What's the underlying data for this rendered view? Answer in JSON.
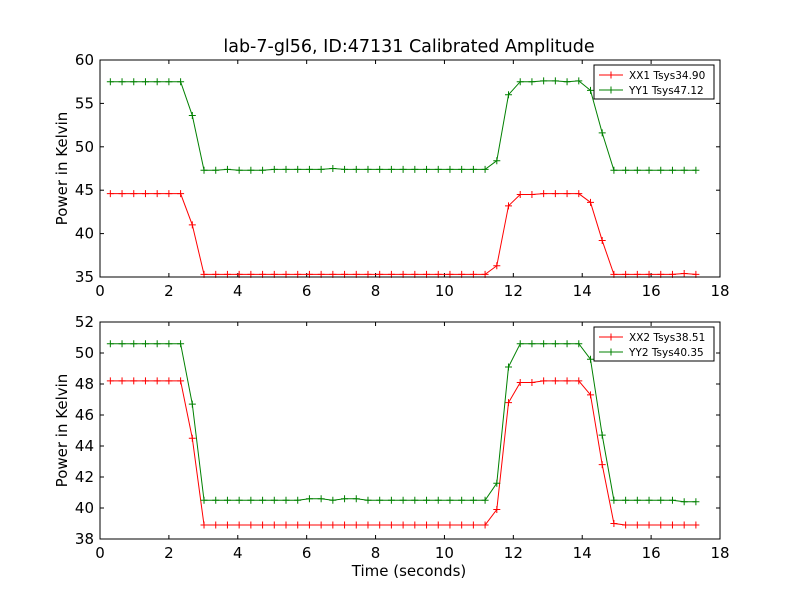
{
  "chart_data": {
    "type": "line",
    "title": "lab-7-gl56, ID:47131 Calibrated Amplitude",
    "xlabel": "Time (seconds)",
    "colors": {
      "XX": "#ff0000",
      "YY": "#008000"
    },
    "x": [
      0.3,
      0.64,
      0.98,
      1.32,
      1.66,
      2.0,
      2.34,
      2.68,
      3.02,
      3.36,
      3.7,
      4.04,
      4.38,
      4.72,
      5.06,
      5.4,
      5.74,
      6.08,
      6.42,
      6.76,
      7.1,
      7.44,
      7.78,
      8.12,
      8.46,
      8.8,
      9.14,
      9.48,
      9.82,
      10.16,
      10.5,
      10.84,
      11.18,
      11.52,
      11.86,
      12.2,
      12.54,
      12.88,
      13.22,
      13.56,
      13.9,
      14.24,
      14.58,
      14.92,
      15.26,
      15.6,
      15.94,
      16.28,
      16.62,
      16.96,
      17.3
    ],
    "panels": [
      {
        "ylabel": "Power in Kelvin",
        "xlim": [
          0,
          18
        ],
        "ylim": [
          35,
          60
        ],
        "xticks": [
          0,
          2,
          4,
          6,
          8,
          10,
          12,
          14,
          16,
          18
        ],
        "yticks": [
          35,
          40,
          45,
          50,
          55,
          60
        ],
        "series": [
          {
            "name": "XX1 Tsys34.90",
            "color_key": "XX",
            "values": [
              44.6,
              44.6,
              44.6,
              44.6,
              44.6,
              44.6,
              44.6,
              41.0,
              35.3,
              35.3,
              35.3,
              35.3,
              35.3,
              35.3,
              35.3,
              35.3,
              35.3,
              35.3,
              35.3,
              35.3,
              35.3,
              35.3,
              35.3,
              35.3,
              35.3,
              35.3,
              35.3,
              35.3,
              35.3,
              35.3,
              35.3,
              35.3,
              35.3,
              36.3,
              43.2,
              44.5,
              44.5,
              44.6,
              44.6,
              44.6,
              44.6,
              43.6,
              39.2,
              35.3,
              35.3,
              35.3,
              35.3,
              35.3,
              35.3,
              35.4,
              35.3
            ]
          },
          {
            "name": "YY1 Tsys47.12",
            "color_key": "YY",
            "values": [
              57.5,
              57.5,
              57.5,
              57.5,
              57.5,
              57.5,
              57.5,
              53.6,
              47.3,
              47.3,
              47.4,
              47.3,
              47.3,
              47.3,
              47.4,
              47.4,
              47.4,
              47.4,
              47.4,
              47.5,
              47.4,
              47.4,
              47.4,
              47.4,
              47.4,
              47.4,
              47.4,
              47.4,
              47.4,
              47.4,
              47.4,
              47.4,
              47.4,
              48.4,
              56.0,
              57.5,
              57.5,
              57.6,
              57.6,
              57.5,
              57.6,
              56.5,
              51.6,
              47.3,
              47.3,
              47.3,
              47.3,
              47.3,
              47.3,
              47.3,
              47.3
            ]
          }
        ]
      },
      {
        "ylabel": "Power in Kelvin",
        "xlim": [
          0,
          18
        ],
        "ylim": [
          38,
          52
        ],
        "xticks": [
          0,
          2,
          4,
          6,
          8,
          10,
          12,
          14,
          16,
          18
        ],
        "yticks": [
          38,
          40,
          42,
          44,
          46,
          48,
          50,
          52
        ],
        "series": [
          {
            "name": "XX2 Tsys38.51",
            "color_key": "XX",
            "values": [
              48.2,
              48.2,
              48.2,
              48.2,
              48.2,
              48.2,
              48.2,
              44.5,
              38.9,
              38.9,
              38.9,
              38.9,
              38.9,
              38.9,
              38.9,
              38.9,
              38.9,
              38.9,
              38.9,
              38.9,
              38.9,
              38.9,
              38.9,
              38.9,
              38.9,
              38.9,
              38.9,
              38.9,
              38.9,
              38.9,
              38.9,
              38.9,
              38.9,
              39.9,
              46.8,
              48.1,
              48.1,
              48.2,
              48.2,
              48.2,
              48.2,
              47.3,
              42.8,
              39.0,
              38.9,
              38.9,
              38.9,
              38.9,
              38.9,
              38.9,
              38.9
            ]
          },
          {
            "name": "YY2 Tsys40.35",
            "color_key": "YY",
            "values": [
              50.6,
              50.6,
              50.6,
              50.6,
              50.6,
              50.6,
              50.6,
              46.7,
              40.5,
              40.5,
              40.5,
              40.5,
              40.5,
              40.5,
              40.5,
              40.5,
              40.5,
              40.6,
              40.6,
              40.5,
              40.6,
              40.6,
              40.5,
              40.5,
              40.5,
              40.5,
              40.5,
              40.5,
              40.5,
              40.5,
              40.5,
              40.5,
              40.5,
              41.6,
              49.1,
              50.6,
              50.6,
              50.6,
              50.6,
              50.6,
              50.6,
              49.6,
              44.7,
              40.5,
              40.5,
              40.5,
              40.5,
              40.5,
              40.5,
              40.4,
              40.4
            ]
          }
        ]
      }
    ]
  }
}
